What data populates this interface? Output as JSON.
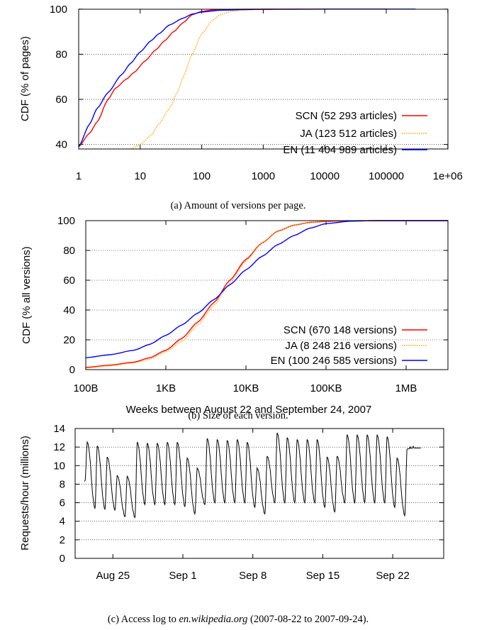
{
  "chart_data": [
    {
      "type": "line",
      "caption": "(a) Amount of versions per page.",
      "ylabel": "CDF (% of pages)",
      "xscale": "log",
      "xlim": [
        1,
        1000000
      ],
      "ylim": [
        38,
        100
      ],
      "xticks": [
        "1",
        "10",
        "100",
        "1000",
        "10000",
        "100000",
        "1e+06"
      ],
      "yticks": [
        "40",
        "60",
        "80",
        "100"
      ],
      "grid": true,
      "legend_position": "lower-right",
      "series": [
        {
          "name": "SCN (52 293 articles)",
          "color": "#ff0000",
          "style": "solid",
          "x": [
            1,
            1.5,
            2,
            3,
            4,
            6,
            8,
            12,
            18,
            25,
            35,
            50,
            70,
            100,
            150,
            300,
            1000,
            10000,
            100000
          ],
          "y": [
            39,
            45,
            50,
            60,
            65,
            69,
            72,
            77,
            82,
            86,
            90,
            94,
            97.5,
            99,
            99.6,
            99.9,
            100,
            100,
            100
          ]
        },
        {
          "name": "JA (123 512 articles)",
          "color": "#ffa500",
          "style": "dotted",
          "x": [
            7,
            10,
            15,
            20,
            30,
            40,
            50,
            70,
            100,
            150,
            200,
            300,
            500,
            1000,
            3000,
            10000,
            100000
          ],
          "y": [
            38,
            40,
            44,
            49,
            56,
            63,
            70,
            80,
            89,
            95,
            97.5,
            99,
            99.6,
            99.9,
            100,
            100,
            100
          ]
        },
        {
          "name": "EN (11 404 989 articles)",
          "color": "#0000ff",
          "style": "solid",
          "x": [
            1,
            1.5,
            2,
            3,
            5,
            7,
            10,
            15,
            20,
            30,
            50,
            70,
            100,
            200,
            500,
            1000,
            10000,
            100000,
            300000
          ],
          "y": [
            39,
            49,
            56,
            63,
            71,
            76,
            81,
            86,
            89,
            93,
            96,
            97.8,
            98.7,
            99.5,
            99.8,
            99.9,
            100,
            100,
            100
          ]
        }
      ]
    },
    {
      "type": "line",
      "caption": "(b) Size of each version.",
      "ylabel": "CDF (% all versions)",
      "xscale": "log",
      "xlim": [
        "100B",
        "4MB"
      ],
      "ylim": [
        0,
        100
      ],
      "xticks": [
        "100B",
        "1KB",
        "10KB",
        "100KB",
        "1MB"
      ],
      "yticks": [
        "0",
        "20",
        "40",
        "60",
        "80",
        "100"
      ],
      "grid": true,
      "legend_position": "lower-right",
      "series": [
        {
          "name": "SCN (670 148 versions)",
          "color": "#ff0000",
          "style": "solid",
          "x_log10_bytes": [
            2.0,
            2.3,
            2.6,
            2.8,
            3.0,
            3.2,
            3.4,
            3.6,
            3.8,
            4.0,
            4.2,
            4.4,
            4.6,
            4.8,
            5.0,
            5.3,
            5.6
          ],
          "y": [
            1.5,
            3,
            5,
            8,
            13,
            21,
            32,
            45,
            60,
            74,
            85,
            93,
            97,
            98.8,
            99.5,
            99.9,
            100
          ]
        },
        {
          "name": "JA (8 248 216 versions)",
          "color": "#ffa500",
          "style": "dotted",
          "x_log10_bytes": [
            2.0,
            2.3,
            2.6,
            2.8,
            3.0,
            3.2,
            3.4,
            3.6,
            3.8,
            4.0,
            4.2,
            4.4,
            4.6,
            4.8,
            5.0,
            5.3,
            5.6
          ],
          "y": [
            1,
            2.5,
            4.5,
            7,
            12,
            19,
            30,
            43,
            58,
            73,
            85,
            93,
            97,
            98.8,
            99.5,
            99.9,
            100
          ]
        },
        {
          "name": "EN (100 246 585 versions)",
          "color": "#0000ff",
          "style": "solid",
          "x_log10_bytes": [
            2.0,
            2.3,
            2.6,
            2.8,
            3.0,
            3.2,
            3.4,
            3.6,
            3.8,
            4.0,
            4.2,
            4.4,
            4.6,
            4.8,
            5.0,
            5.3,
            5.6
          ],
          "y": [
            8,
            10,
            13,
            17,
            23,
            30,
            38,
            47,
            57,
            67,
            76,
            84,
            90,
            95,
            98,
            99.6,
            100
          ]
        }
      ]
    },
    {
      "type": "line",
      "caption_prefix": "(c) Access log to ",
      "caption_site": "en.wikipedia.org",
      "caption_suffix": " (2007-08-22 to 2007-09-24).",
      "title": "Weeks between August 22 and September 24, 2007",
      "ylabel": "Requests/hour (millions)",
      "ylim": [
        0,
        14
      ],
      "yticks": [
        "0",
        "2",
        "4",
        "6",
        "8",
        "10",
        "12",
        "14"
      ],
      "xticks": [
        "Aug 25",
        "Sep 1",
        "Sep 8",
        "Sep 15",
        "Sep 22"
      ],
      "xtick_day": [
        3,
        10,
        17,
        24,
        31
      ],
      "x_range_days": [
        0,
        34.5
      ],
      "grid": true,
      "daily_peaks": [
        12.5,
        12.1,
        10.9,
        8.9,
        8.8,
        12.5,
        12.4,
        12.4,
        12.5,
        12.5,
        10.8,
        9.7,
        12.9,
        12.8,
        12.7,
        12.8,
        12.5,
        9.7,
        11.0,
        13.5,
        13.0,
        12.8,
        12.8,
        12.8,
        10.9,
        11.0,
        13.3,
        13.3,
        13.3,
        13.3,
        13.1,
        10.8,
        11.8
      ],
      "daily_troughs": [
        8.3,
        5.4,
        5.3,
        5.2,
        4.5,
        4.4,
        5.8,
        5.8,
        5.8,
        5.8,
        5.6,
        4.8,
        5.8,
        6.0,
        6.0,
        6.0,
        6.0,
        5.5,
        4.8,
        6.0,
        6.0,
        6.0,
        6.0,
        6.0,
        5.5,
        5.0,
        6.0,
        6.0,
        6.0,
        6.0,
        6.0,
        5.5,
        4.6,
        11.9
      ]
    }
  ]
}
